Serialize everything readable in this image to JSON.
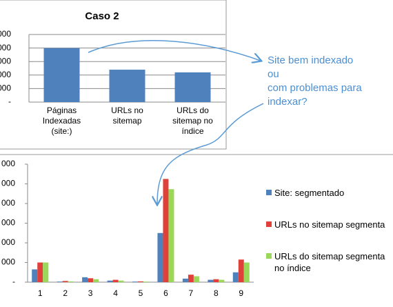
{
  "chart_data": [
    {
      "type": "bar",
      "title": "Caso 2",
      "categories": [
        "Páginas\nIndexadas\n(site:)",
        "URLs no\nsitemap",
        "URLs do\nsitemap no\níndice"
      ],
      "values": [
        4000,
        2400,
        2200
      ],
      "color": "#4f81bd",
      "ylim": [
        0,
        5000
      ],
      "yticks": [
        {
          "value": 0,
          "label": "-"
        },
        {
          "value": 1000,
          "label": "000"
        },
        {
          "value": 2000,
          "label": "000"
        },
        {
          "value": 3000,
          "label": "000"
        },
        {
          "value": 4000,
          "label": "000"
        },
        {
          "value": 5000,
          "label": "000"
        }
      ],
      "grid": true
    },
    {
      "type": "grouped-bar",
      "categories": [
        "1",
        "2",
        "3",
        "4",
        "5",
        "6",
        "7",
        "8",
        "9"
      ],
      "series": [
        {
          "name": "Site: segmentado",
          "color": "#4f81bd",
          "values": [
            650,
            30,
            250,
            80,
            30,
            2500,
            180,
            120,
            500
          ]
        },
        {
          "name": "URLs no sitemap segmenta",
          "color": "#e0403a",
          "values": [
            1000,
            60,
            200,
            120,
            40,
            5250,
            380,
            150,
            1150
          ]
        },
        {
          "name": "URLs do sitemap segmenta no índice",
          "color": "#9bd85a",
          "values": [
            1000,
            40,
            150,
            80,
            30,
            4730,
            300,
            120,
            1000
          ]
        }
      ],
      "ylim": [
        0,
        6000
      ],
      "yticks": [
        {
          "value": 0,
          "label": "-"
        },
        {
          "value": 1000,
          "label": "000"
        },
        {
          "value": 2000,
          "label": "000"
        },
        {
          "value": 3000,
          "label": "000"
        },
        {
          "value": 4000,
          "label": "000"
        },
        {
          "value": 5000,
          "label": "000"
        },
        {
          "value": 6000,
          "label": "000"
        }
      ],
      "grid": false,
      "legend": "right"
    }
  ],
  "annotation": "Site bem indexado\nou\ncom problemas para\nindexar?"
}
